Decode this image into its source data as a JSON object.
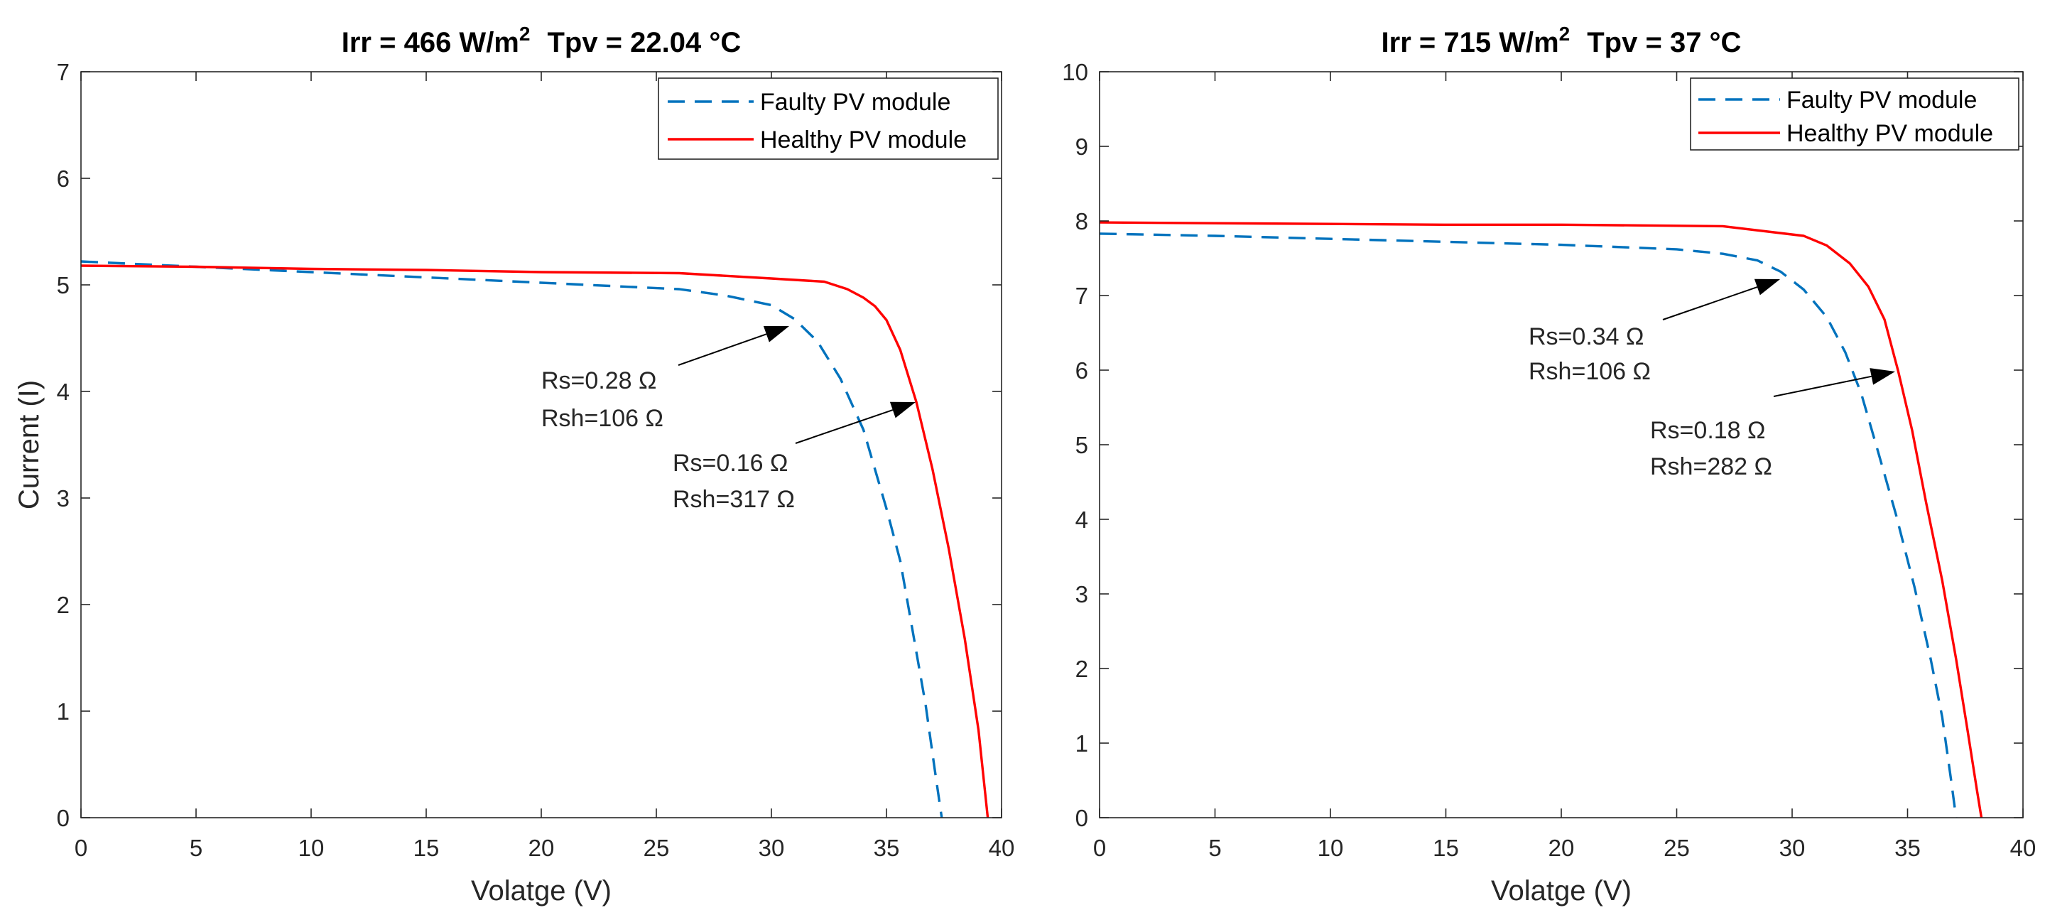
{
  "chart_data": [
    {
      "type": "line",
      "title_prefix": "Irr = 466 W/m",
      "title_superscript": "2",
      "title_suffix": "Tpv = 22.04 °C",
      "xlabel": "Volatge (V)",
      "ylabel": "Current (I)",
      "xlim": [
        0,
        40
      ],
      "ylim": [
        0,
        7
      ],
      "xticks": [
        0,
        5,
        10,
        15,
        20,
        25,
        30,
        35,
        40
      ],
      "yticks": [
        0,
        1,
        2,
        3,
        4,
        5,
        6,
        7
      ],
      "grid": false,
      "legend_location": "top-right",
      "series": [
        {
          "name": "Faulty PV module",
          "color": "#0072BD",
          "dashed": true,
          "x": [
            0,
            5,
            10,
            15,
            20,
            26,
            28,
            30,
            31,
            32,
            33,
            34,
            35,
            35.6,
            36.1,
            36.7,
            37.1,
            37.4
          ],
          "y": [
            5.22,
            5.17,
            5.12,
            5.07,
            5.02,
            4.96,
            4.9,
            4.81,
            4.68,
            4.47,
            4.12,
            3.64,
            2.9,
            2.41,
            1.8,
            1.06,
            0.45,
            0.0
          ]
        },
        {
          "name": "Healthy PV module",
          "color": "#FF0000",
          "dashed": false,
          "x": [
            0,
            5,
            10,
            15,
            20,
            26,
            30,
            32.3,
            33.3,
            34,
            34.5,
            35,
            35.6,
            36.3,
            37,
            37.7,
            38.4,
            39,
            39.4
          ],
          "y": [
            5.18,
            5.17,
            5.15,
            5.14,
            5.12,
            5.11,
            5.06,
            5.03,
            4.96,
            4.88,
            4.8,
            4.67,
            4.39,
            3.9,
            3.27,
            2.53,
            1.68,
            0.82,
            0.0
          ]
        }
      ],
      "annotations": [
        {
          "lines": [
            "Rs=0.28 Ω",
            "Rsh=106 Ω"
          ]
        },
        {
          "lines": [
            "Rs=0.16 Ω",
            "Rsh=317 Ω"
          ]
        }
      ]
    },
    {
      "type": "line",
      "title_prefix": "Irr = 715 W/m",
      "title_superscript": "2",
      "title_suffix": "Tpv = 37 °C",
      "xlabel": "Volatge (V)",
      "ylabel": "",
      "xlim": [
        0,
        40
      ],
      "ylim": [
        0,
        10
      ],
      "xticks": [
        0,
        5,
        10,
        15,
        20,
        25,
        30,
        35,
        40
      ],
      "yticks": [
        0,
        1,
        2,
        3,
        4,
        5,
        6,
        7,
        8,
        9,
        10
      ],
      "grid": false,
      "legend_location": "top-right",
      "series": [
        {
          "name": "Faulty PV module",
          "color": "#0072BD",
          "dashed": true,
          "x": [
            0,
            5,
            10,
            15,
            20,
            25,
            27,
            28.5,
            29.5,
            30.5,
            31.5,
            32.3,
            33,
            33.7,
            34.5,
            35.3,
            36,
            36.5,
            36.9,
            37.1
          ],
          "y": [
            7.83,
            7.8,
            7.76,
            7.72,
            7.68,
            7.62,
            7.56,
            7.47,
            7.32,
            7.08,
            6.71,
            6.24,
            5.68,
            4.93,
            4.06,
            3.09,
            2.13,
            1.35,
            0.47,
            0.0
          ]
        },
        {
          "name": "Healthy PV module",
          "color": "#FF0000",
          "dashed": false,
          "x": [
            0,
            5,
            10,
            15,
            20,
            27,
            30.5,
            31.5,
            32.5,
            33.3,
            34,
            34.6,
            35.2,
            35.8,
            36.5,
            37.1,
            37.6,
            38.0,
            38.2
          ],
          "y": [
            7.98,
            7.97,
            7.96,
            7.95,
            7.95,
            7.93,
            7.8,
            7.67,
            7.43,
            7.12,
            6.68,
            5.98,
            5.19,
            4.23,
            3.18,
            2.13,
            1.17,
            0.38,
            0.0
          ]
        }
      ],
      "annotations": [
        {
          "lines": [
            "Rs=0.34 Ω",
            "Rsh=106 Ω"
          ]
        },
        {
          "lines": [
            "Rs=0.18 Ω",
            "Rsh=282 Ω"
          ]
        }
      ]
    }
  ]
}
